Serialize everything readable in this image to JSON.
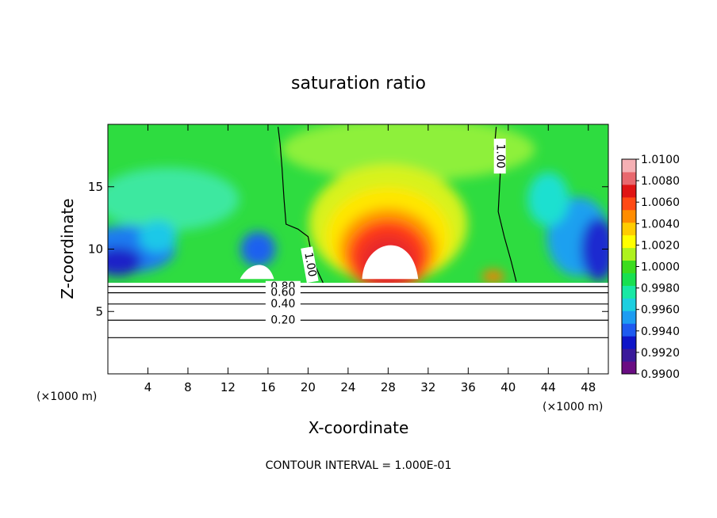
{
  "chart_data": {
    "type": "heatmap",
    "title": "saturation ratio",
    "xlabel": "X-coordinate",
    "ylabel": "Z-coordinate",
    "x_unit": "(×1000 m)",
    "y_unit": "(×1000 m)",
    "xlim": [
      0,
      50
    ],
    "ylim": [
      0,
      20
    ],
    "x_ticks": [
      4,
      8,
      12,
      16,
      20,
      24,
      28,
      32,
      36,
      40,
      44,
      48
    ],
    "y_ticks": [
      5,
      10,
      15
    ],
    "colorbar": {
      "min": 0.99,
      "max": 1.01,
      "labels": [
        "1.0100",
        "1.0080",
        "1.0060",
        "1.0040",
        "1.0020",
        "1.0000",
        "0.9980",
        "0.9960",
        "0.9940",
        "0.9920",
        "0.9900"
      ],
      "colors": [
        "#6a0d83",
        "#3a1a9a",
        "#0f15c8",
        "#1e5af0",
        "#1c9cf2",
        "#1ccfe0",
        "#18e8a4",
        "#18e050",
        "#3cdc1e",
        "#aef21e",
        "#ffff00",
        "#ffcc00",
        "#ff8c00",
        "#ff4a14",
        "#e01414",
        "#e8686e",
        "#f5b0b4"
      ]
    },
    "contours": [
      {
        "label": "1.00",
        "level": 1.0,
        "x": [
          17.0,
          17.2,
          17.4,
          17.6,
          17.8,
          19.0,
          20.0,
          20.5,
          21.5
        ],
        "y": [
          19.8,
          18.5,
          16.5,
          14.0,
          12.0,
          11.6,
          11.0,
          9.0,
          7.3
        ]
      },
      {
        "label": "1.00",
        "level": 1.0,
        "x": [
          38.8,
          38.6,
          39.2,
          39.0,
          39.6,
          40.3,
          40.8
        ],
        "y": [
          19.8,
          18.0,
          16.0,
          13.0,
          11.0,
          9.0,
          7.4
        ]
      },
      {
        "label": "0.80",
        "level": 0.8,
        "x": [
          0,
          50
        ],
        "y": [
          7.0,
          7.0
        ]
      },
      {
        "label": "0.60",
        "level": 0.6,
        "x": [
          0,
          50
        ],
        "y": [
          6.5,
          6.5
        ]
      },
      {
        "label": "0.40",
        "level": 0.4,
        "x": [
          0,
          50
        ],
        "y": [
          5.6,
          5.6
        ]
      },
      {
        "label": "0.20",
        "level": 0.2,
        "x": [
          0,
          50
        ],
        "y": [
          4.3,
          4.3
        ]
      },
      {
        "label": "",
        "level": 0.1,
        "x": [
          0,
          50
        ],
        "y": [
          2.9,
          2.9
        ]
      }
    ],
    "footnote": "CONTOUR INTERVAL = 1.000E-01"
  }
}
